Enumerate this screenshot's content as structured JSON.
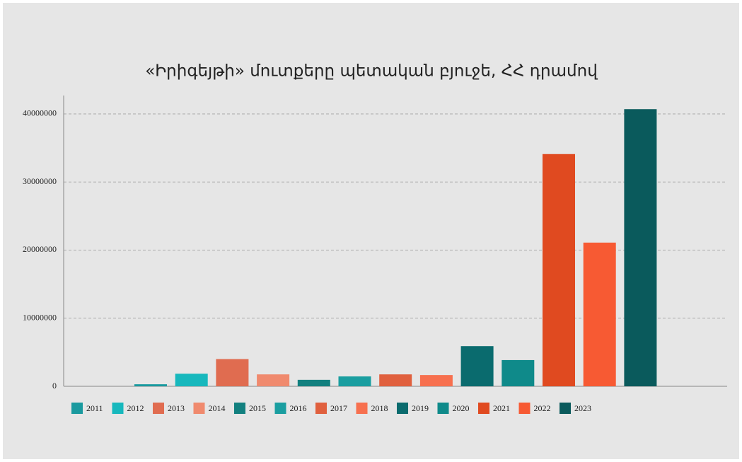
{
  "chart_data": {
    "type": "bar",
    "title": "«Իրիգեյթի» մուտքերը պետական բյուջե, ՀՀ դրամով",
    "categories": [
      "2011",
      "2012",
      "2013",
      "2014",
      "2015",
      "2016",
      "2017",
      "2018",
      "2019",
      "2020",
      "2021",
      "2022",
      "2023"
    ],
    "values": [
      300000,
      1850000,
      4000000,
      1750000,
      950000,
      1450000,
      1750000,
      1650000,
      5900000,
      3850000,
      34100000,
      21100000,
      40700000
    ],
    "colors": [
      "#1a9a9f",
      "#17b8bd",
      "#e06c50",
      "#f08a6e",
      "#12807f",
      "#1a9ea0",
      "#e0603e",
      "#f7704f",
      "#0a6b6e",
      "#0f8a8a",
      "#e04a20",
      "#f75a33",
      "#0a5a5c"
    ],
    "ylim": [
      0,
      42700000
    ],
    "yticks": [
      0,
      10000000,
      20000000,
      30000000,
      40000000
    ],
    "grid": true
  }
}
